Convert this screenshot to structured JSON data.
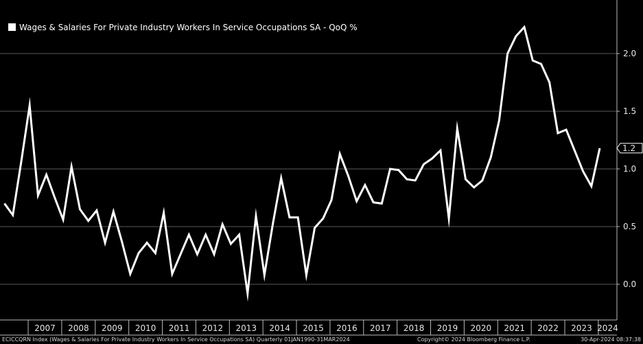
{
  "chart_data": {
    "type": "line",
    "title": "Wages & Salaries For Private Industry Workers In Service Occupations SA - QoQ %",
    "legend": {
      "label": "Wages & Salaries For Private Industry Workers In Service Occupations SA - QoQ %",
      "position": "top-left"
    },
    "series": [
      {
        "name": "Wages & Salaries For Private Industry Workers In Service Occupations SA - QoQ %",
        "color": "#ffffff",
        "x": [
          "2006Q2",
          "2006Q3",
          "2006Q4",
          "2007Q1",
          "2007Q2",
          "2007Q3",
          "2007Q4",
          "2008Q1",
          "2008Q2",
          "2008Q3",
          "2008Q4",
          "2009Q1",
          "2009Q2",
          "2009Q3",
          "2009Q4",
          "2010Q1",
          "2010Q2",
          "2010Q3",
          "2010Q4",
          "2011Q1",
          "2011Q2",
          "2011Q3",
          "2011Q4",
          "2012Q1",
          "2012Q2",
          "2012Q3",
          "2012Q4",
          "2013Q1",
          "2013Q2",
          "2013Q3",
          "2013Q4",
          "2014Q1",
          "2014Q2",
          "2014Q3",
          "2014Q4",
          "2015Q1",
          "2015Q2",
          "2015Q3",
          "2015Q4",
          "2016Q1",
          "2016Q2",
          "2016Q3",
          "2016Q4",
          "2017Q1",
          "2017Q2",
          "2017Q3",
          "2017Q4",
          "2018Q1",
          "2018Q2",
          "2018Q3",
          "2018Q4",
          "2019Q1",
          "2019Q2",
          "2019Q3",
          "2019Q4",
          "2020Q1",
          "2020Q2",
          "2020Q3",
          "2020Q4",
          "2021Q1",
          "2021Q2",
          "2021Q3",
          "2021Q4",
          "2022Q1",
          "2022Q2",
          "2022Q3",
          "2022Q4",
          "2023Q1",
          "2023Q2",
          "2023Q3",
          "2023Q4",
          "2024Q1"
        ],
        "values": [
          0.7,
          0.6,
          1.06,
          1.55,
          0.77,
          0.95,
          0.75,
          0.56,
          1.02,
          0.65,
          0.55,
          0.64,
          0.36,
          0.63,
          0.37,
          0.09,
          0.27,
          0.36,
          0.27,
          0.62,
          0.09,
          0.26,
          0.43,
          0.26,
          0.43,
          0.26,
          0.52,
          0.35,
          0.43,
          -0.08,
          0.59,
          0.08,
          0.52,
          0.92,
          0.58,
          0.58,
          0.08,
          0.49,
          0.57,
          0.73,
          1.13,
          0.94,
          0.72,
          0.86,
          0.71,
          0.7,
          1.0,
          0.99,
          0.91,
          0.9,
          1.04,
          1.09,
          1.16,
          0.57,
          1.35,
          0.91,
          0.84,
          0.9,
          1.1,
          1.42,
          2.0,
          2.15,
          2.23,
          1.94,
          1.91,
          1.75,
          1.31,
          1.34,
          1.16,
          0.98,
          0.85,
          1.18
        ]
      }
    ],
    "ylim": [
      -0.25,
      2.45
    ],
    "yticks": [
      0.0,
      0.5,
      1.0,
      1.5,
      2.0
    ],
    "ytick_labels": [
      "0.0",
      "0.5",
      "1.0",
      "1.5",
      "2.0"
    ],
    "xtick_labels": [
      "2007",
      "2008",
      "2009",
      "2010",
      "2011",
      "2012",
      "2013",
      "2014",
      "2015",
      "2016",
      "2017",
      "2018",
      "2019",
      "2020",
      "2021",
      "2022",
      "2023",
      "2024"
    ],
    "last_value_label": "1.2",
    "grid": "horizontal",
    "xlabel": "",
    "ylabel": ""
  },
  "footer": {
    "left": "ECICCQRN Index (Wages & Salaries For Private Industry Workers In Service Occupations SA)  Quarterly 01JAN1990-31MAR2024",
    "center": "Copyright© 2024 Bloomberg Finance L.P.",
    "right": "30-Apr-2024 08:37:38"
  },
  "colors": {
    "background": "#000000",
    "line": "#ffffff",
    "grid": "#5a5a5a",
    "text": "#e6e6e6"
  }
}
